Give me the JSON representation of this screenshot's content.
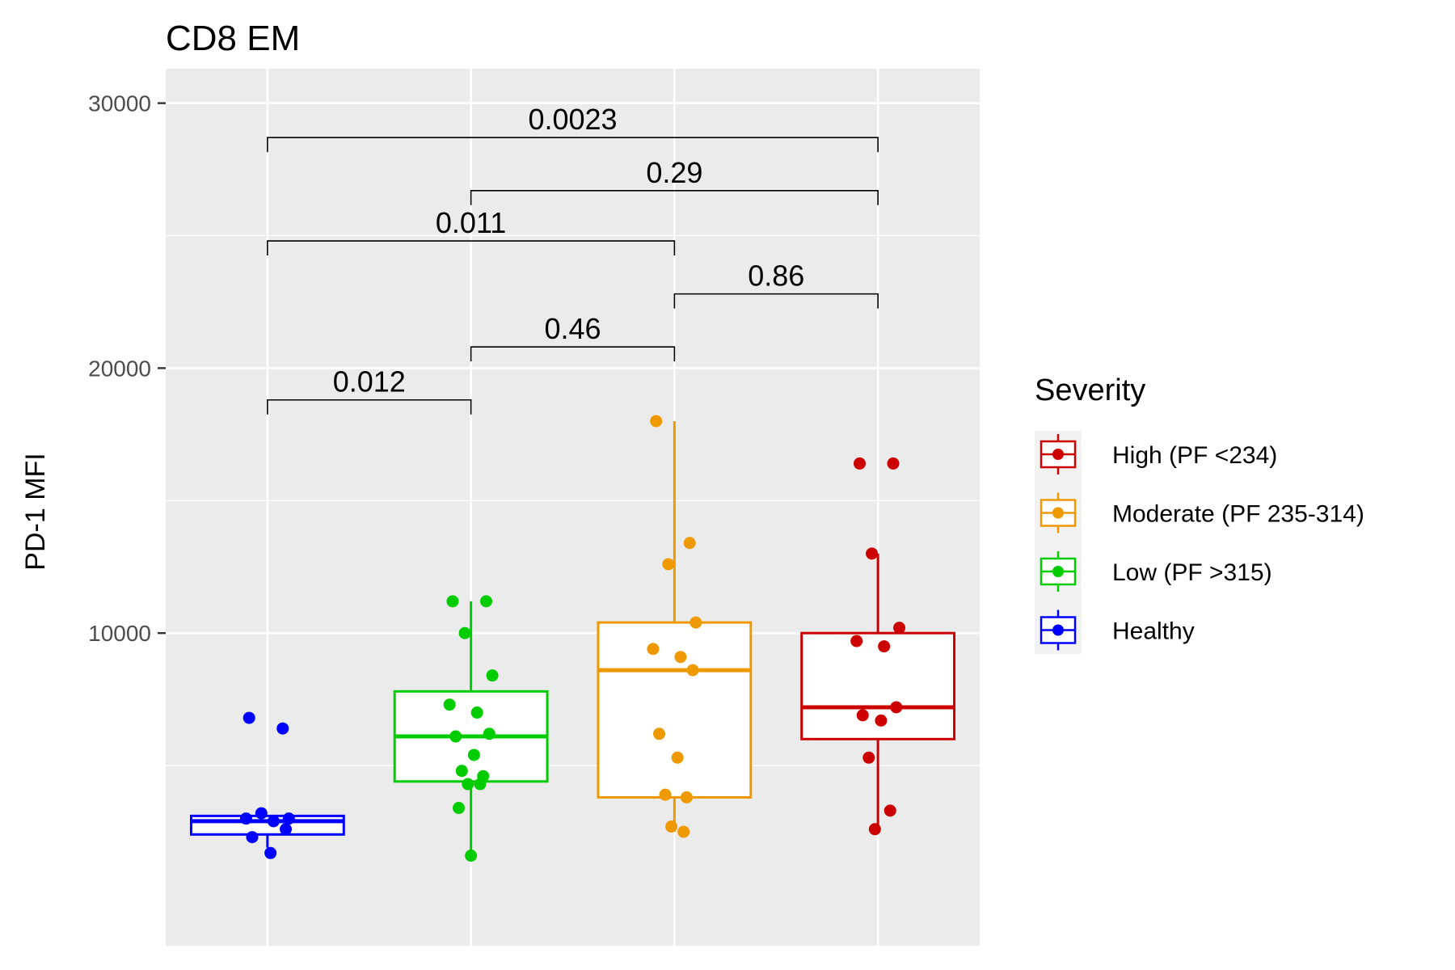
{
  "chart_data": {
    "type": "box",
    "title": "CD8 EM",
    "xlabel": "",
    "ylabel": "PD-1 MFI",
    "ylim": [
      -1800,
      31300
    ],
    "yticks": [
      10000,
      20000,
      30000
    ],
    "yticks_labels": [
      "10000",
      "20000",
      "30000"
    ],
    "grid": true,
    "legend_position": "right",
    "legend_title": "Severity",
    "categories": [
      "Healthy",
      "Low (PF >315)",
      "Moderate (PF 235-314)",
      "High (PF <234)"
    ],
    "series": [
      {
        "name": "Healthy",
        "color": "#0000ff",
        "box": {
          "lower_whisker": 1900,
          "q1": 2400,
          "median": 2900,
          "q3": 3100,
          "upper_whisker": 3100
        },
        "points": [
          6800,
          6400,
          3200,
          3000,
          3000,
          2900,
          2600,
          2300,
          1700
        ]
      },
      {
        "name": "Low (PF >315)",
        "color": "#00cc00",
        "box": {
          "lower_whisker": 1600,
          "q1": 4400,
          "median": 6100,
          "q3": 7800,
          "upper_whisker": 11200
        },
        "points": [
          11200,
          11200,
          10000,
          8400,
          7300,
          7000,
          6200,
          6100,
          5400,
          4800,
          4600,
          4300,
          4300,
          3400,
          1600
        ]
      },
      {
        "name": "Moderate (PF 235-314)",
        "color": "#ee9900",
        "box": {
          "lower_whisker": 2500,
          "q1": 3800,
          "median": 8600,
          "q3": 10400,
          "upper_whisker": 18000
        },
        "points": [
          18000,
          13400,
          12600,
          10400,
          9400,
          9100,
          8600,
          6200,
          5300,
          3900,
          3800,
          2700,
          2500
        ]
      },
      {
        "name": "High (PF <234)",
        "color": "#cc0000",
        "box": {
          "lower_whisker": 2600,
          "q1": 6000,
          "median": 7200,
          "q3": 10000,
          "upper_whisker": 13000
        },
        "points": [
          16400,
          16400,
          13000,
          10200,
          9700,
          9500,
          7200,
          6900,
          6700,
          5300,
          3300,
          2600
        ]
      }
    ],
    "comparisons": [
      {
        "groups": [
          "Healthy",
          "Low (PF >315)"
        ],
        "label": "0.012",
        "y": 18800
      },
      {
        "groups": [
          "Low (PF >315)",
          "Moderate (PF 235-314)"
        ],
        "label": "0.46",
        "y": 20800
      },
      {
        "groups": [
          "Moderate (PF 235-314)",
          "High (PF <234)"
        ],
        "label": "0.86",
        "y": 22800
      },
      {
        "groups": [
          "Healthy",
          "Moderate (PF 235-314)"
        ],
        "label": "0.011",
        "y": 24800
      },
      {
        "groups": [
          "Low (PF >315)",
          "High (PF <234)"
        ],
        "label": "0.29",
        "y": 26700
      },
      {
        "groups": [
          "Healthy",
          "High (PF <234)"
        ],
        "label": "0.0023",
        "y": 28700
      }
    ],
    "legend_order": [
      "High (PF <234)",
      "Moderate (PF 235-314)",
      "Low (PF >315)",
      "Healthy"
    ]
  }
}
